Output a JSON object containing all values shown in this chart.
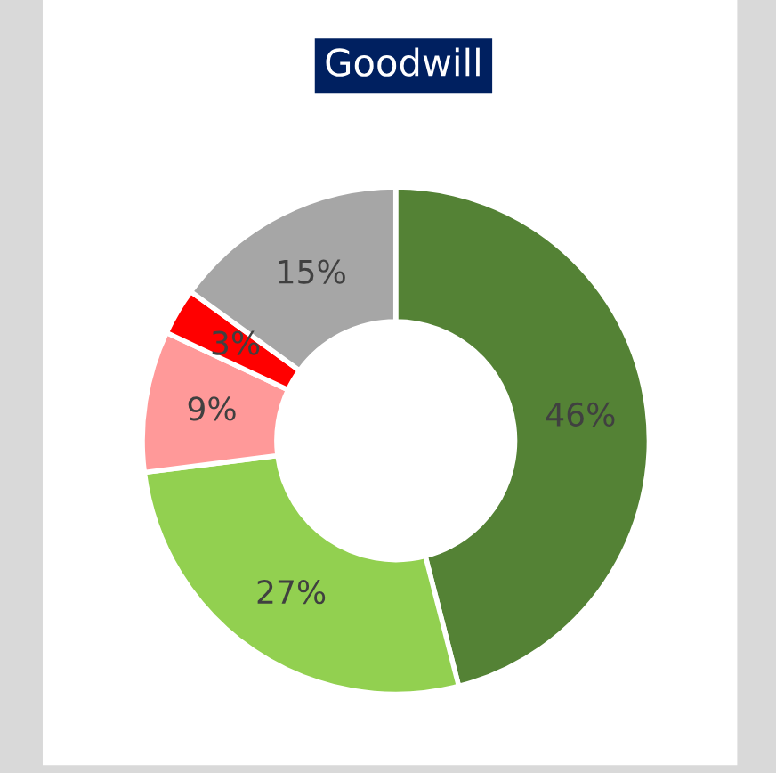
{
  "chart_data": {
    "type": "donut",
    "title": "Goodwill",
    "categories": [
      null,
      null,
      null,
      null,
      null
    ],
    "values": [
      46,
      27,
      9,
      3,
      15
    ],
    "colors": [
      "#548235",
      "#92d050",
      "#ff9999",
      "#ff0000",
      "#a6a6a6"
    ],
    "value_labels": [
      "46%",
      "27%",
      "9%",
      "3%",
      "15%"
    ],
    "legend": false
  }
}
